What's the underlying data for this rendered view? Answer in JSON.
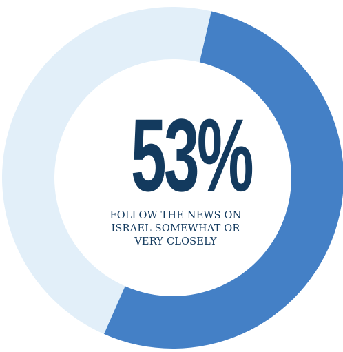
{
  "chart_data": {
    "type": "pie",
    "values": [
      53,
      47
    ],
    "colors": [
      "#4480c6",
      "#e2eff9"
    ],
    "value_label": "53%",
    "caption_lines": [
      "FOLLOW THE NEWS ON",
      "ISRAEL SOMEWHAT OR",
      "VERY CLOSELY"
    ]
  },
  "colors": {
    "text": "#133a5e",
    "background": "#ffffff"
  }
}
